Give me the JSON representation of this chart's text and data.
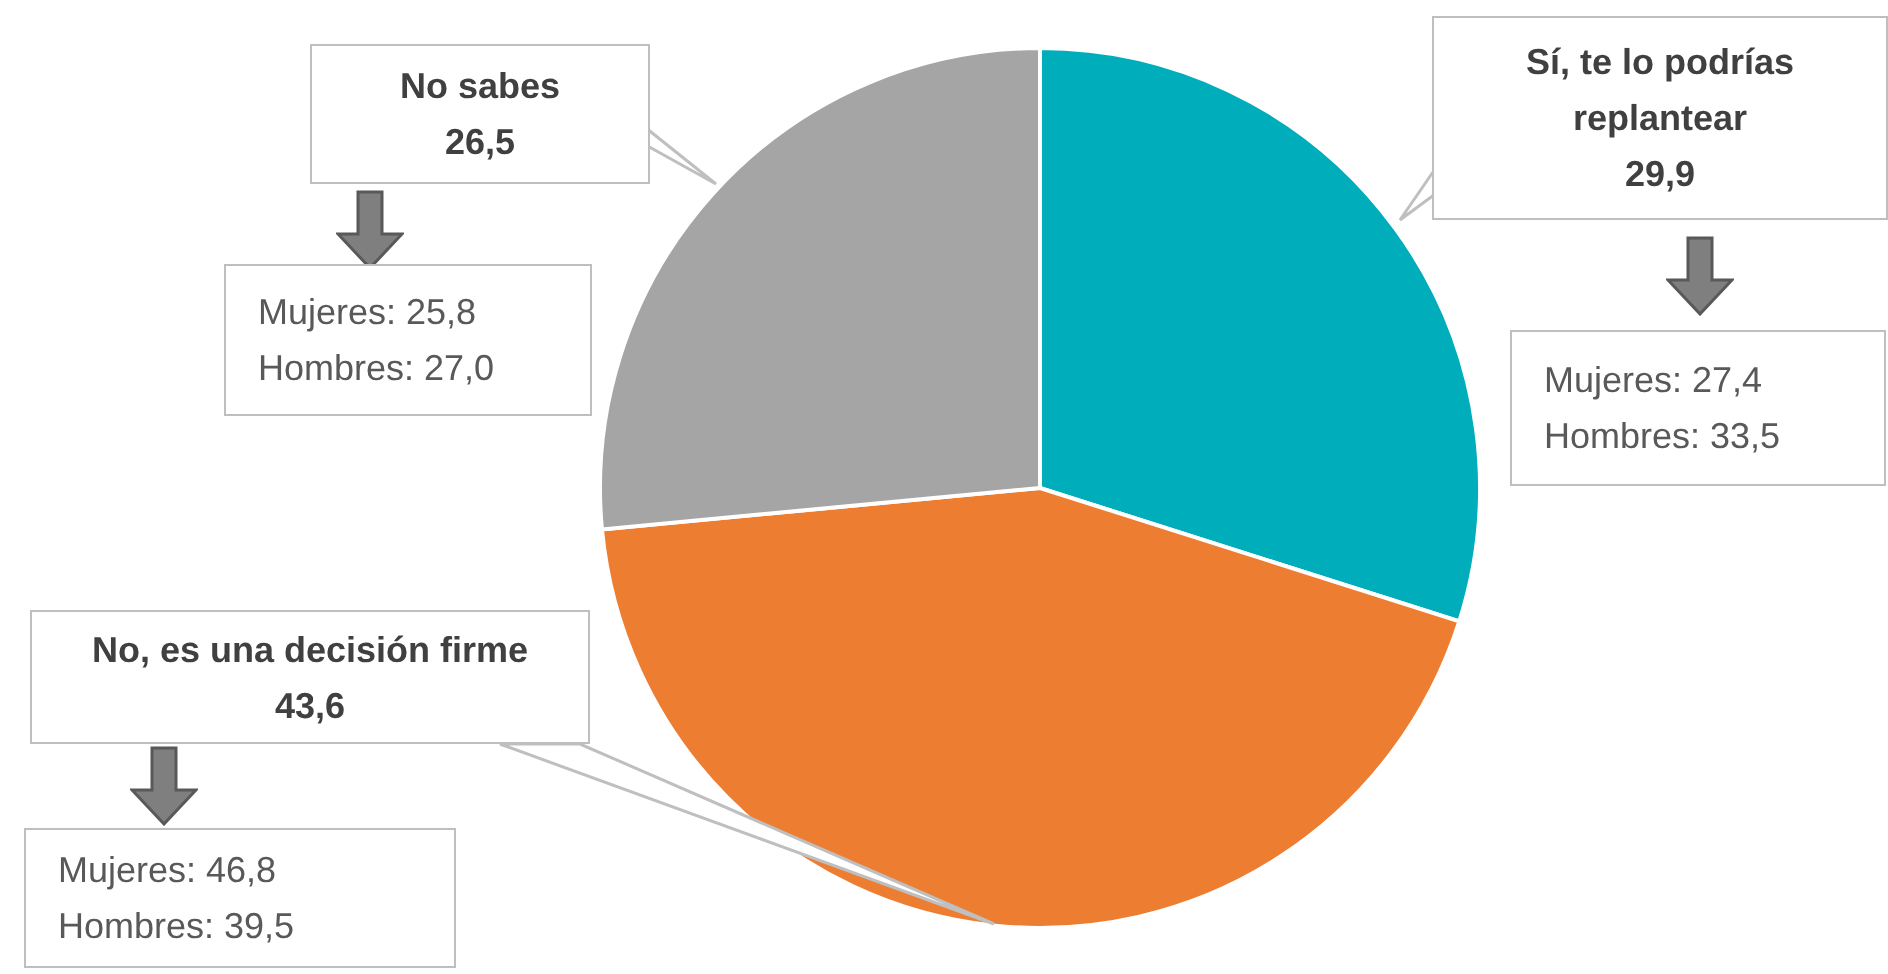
{
  "chart_data": {
    "type": "pie",
    "categories": [
      "Sí, te lo podrías replantear",
      "No, es una decisión firme",
      "No sabes"
    ],
    "values": [
      29.9,
      43.6,
      26.5
    ],
    "colors": [
      "#00adba",
      "#ed7d31",
      "#a5a5a5"
    ],
    "value_labels": [
      "29,9",
      "43,6",
      "26,5"
    ],
    "annotations": [
      "Mujeres: 27,4\nHombres: 33,5",
      "Mujeres: 46,8\nHombres: 39,5",
      "Mujeres: 25,8\nHombres: 27,0"
    ],
    "legend": false
  }
}
